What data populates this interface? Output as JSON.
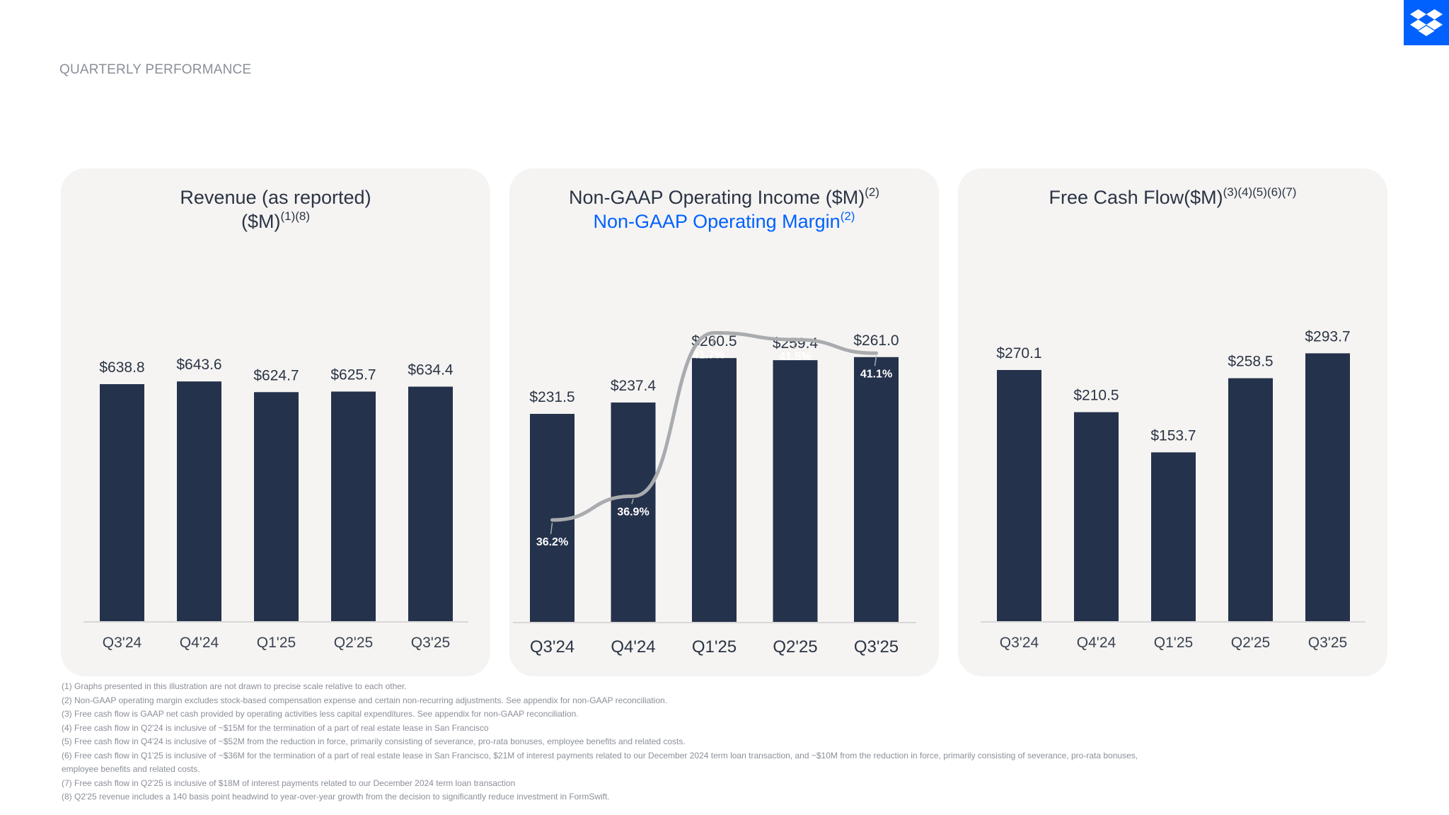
{
  "page": {
    "title": "QUARTERLY PERFORMANCE",
    "logo": "dropbox-logo",
    "brand_color": "#0061fe",
    "bar_color": "#25324c",
    "line_color": "#a9abae"
  },
  "charts": {
    "revenue": {
      "title_line1": "Revenue (as reported)",
      "title_line2": "($M)",
      "title_sup": "(1)(8)"
    },
    "operating": {
      "title_line1": "Non-GAAP Operating Income ($M)",
      "title_line1_sup": "(2)",
      "title_line2": "Non-GAAP Operating Margin",
      "title_line2_sup": "(2)"
    },
    "fcf": {
      "title_line1": "Free Cash Flow($M)",
      "title_sup": "(3)(4)(5)(6)(7)"
    }
  },
  "chart_data": [
    {
      "type": "bar",
      "categories": [
        "Q3'24",
        "Q4'24",
        "Q1'25",
        "Q2'25",
        "Q3'25"
      ],
      "values": [
        638.8,
        643.6,
        624.7,
        625.7,
        634.4
      ],
      "value_labels": [
        "$638.8",
        "$643.6",
        "$624.7",
        "$625.7",
        "$634.4"
      ],
      "title": "Revenue (as reported) ($M)(1)(8)"
    },
    {
      "type": "bar",
      "categories": [
        "Q3'24",
        "Q4'24",
        "Q1'25",
        "Q2'25",
        "Q3'25"
      ],
      "series": [
        {
          "type": "bar",
          "values": [
            231.5,
            237.4,
            260.5,
            259.4,
            261.0
          ],
          "value_labels": [
            "$231.5",
            "$237.4",
            "$260.5",
            "$259.4",
            "$261.0"
          ]
        },
        {
          "type": "line",
          "values": [
            36.2,
            36.9,
            41.7,
            41.5,
            41.1
          ],
          "value_labels": [
            "36.2%",
            "36.9%",
            "41.7%",
            "41.5%",
            "41.1%"
          ]
        }
      ],
      "title": "Non-GAAP Operating Income ($M)(2) Non-GAAP Operating Margin(2)"
    },
    {
      "type": "bar",
      "categories": [
        "Q3'24",
        "Q4'24",
        "Q1'25",
        "Q2'25",
        "Q3'25"
      ],
      "values": [
        270.1,
        210.5,
        153.7,
        258.5,
        293.7
      ],
      "value_labels": [
        "$270.1",
        "$210.5",
        "$153.7",
        "$258.5",
        "$293.7"
      ],
      "title": "Free Cash Flow($M)(3)(4)(5)(6)(7)"
    }
  ],
  "footnotes": [
    "(1) Graphs presented in this illustration are not drawn to precise scale relative to each other.",
    "(2) Non-GAAP operating margin excludes stock-based compensation expense and certain non-recurring adjustments. See appendix for non-GAAP reconciliation.",
    "(3) Free cash flow is GAAP net cash provided by operating activities less capital expenditures. See appendix for non-GAAP reconciliation.",
    "(4) Free cash flow in Q2'24 is inclusive of ~$15M for the termination of a part of real estate lease in San Francisco",
    "(5) Free cash flow in Q4'24 is inclusive of ~$52M from the reduction in force, primarily consisting of severance, pro-rata bonuses, employee benefits and related costs.",
    "(6) Free cash flow in Q1'25 is inclusive of ~$36M for the termination of a part of real estate lease in San Francisco, $21M of interest payments related to our December 2024 term loan transaction, and ~$10M from the reduction in force, primarily consisting of severance, pro-rata bonuses, employee benefits and related costs.",
    "(7) Free cash flow in Q2'25 is inclusive of $18M of interest payments related to our December 2024 term loan transaction",
    "(8) Q2'25 revenue includes a 140 basis point headwind to year-over-year growth from the decision to significantly reduce investment in FormSwift."
  ]
}
